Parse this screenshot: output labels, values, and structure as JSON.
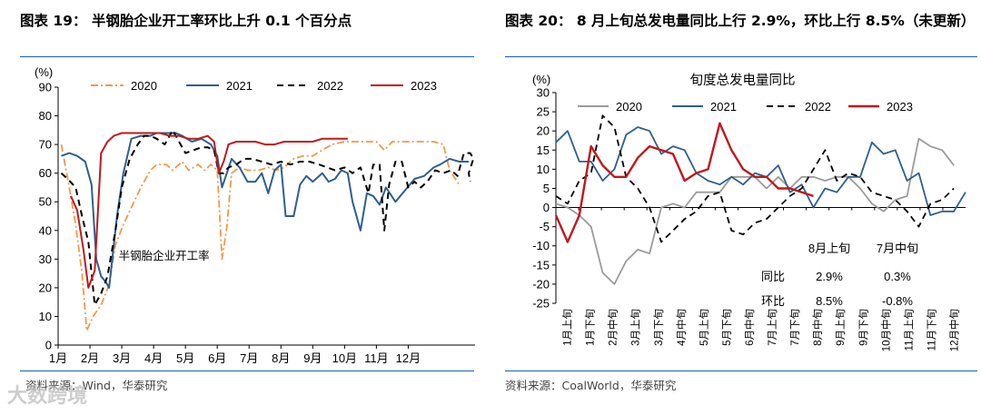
{
  "watermark": "大数跨境",
  "chart_data": [
    {
      "type": "line",
      "title": "图表 19：  半钢胎企业开工率环比上升 0.1 个百分点",
      "ylabel": "(%)",
      "ylim": [
        0,
        90
      ],
      "yticks": [
        0,
        10,
        20,
        30,
        40,
        50,
        60,
        70,
        80,
        90
      ],
      "xticks": [
        "1月",
        "2月",
        "3月",
        "4月",
        "5月",
        "6月",
        "7月",
        "8月",
        "9月",
        "10月",
        "11月",
        "12月"
      ],
      "xlim": [
        0,
        13.1
      ],
      "annotation": "半钢胎企业开工率",
      "source": "资料来源：Wind，华泰研究",
      "legend": [
        "2020",
        "2021",
        "2022",
        "2023"
      ],
      "colors": [
        "#ee9a4d",
        "#2f5f8f",
        "#000000",
        "#c0191c"
      ],
      "series": [
        {
          "name": "2020",
          "style": "dashdot",
          "points": [
            [
              0.1,
              70
            ],
            [
              0.35,
              55
            ],
            [
              0.55,
              42
            ],
            [
              0.75,
              25
            ],
            [
              0.9,
              5
            ],
            [
              1.1,
              10
            ],
            [
              1.35,
              14
            ],
            [
              1.6,
              21
            ],
            [
              1.8,
              35
            ],
            [
              2.05,
              42
            ],
            [
              2.3,
              48
            ],
            [
              2.6,
              55
            ],
            [
              2.9,
              61
            ],
            [
              3.1,
              63
            ],
            [
              3.4,
              63
            ],
            [
              3.6,
              61
            ],
            [
              3.9,
              64
            ],
            [
              4.1,
              61
            ],
            [
              4.4,
              63
            ],
            [
              4.6,
              61
            ],
            [
              4.8,
              63
            ],
            [
              5.0,
              61
            ],
            [
              5.15,
              30
            ],
            [
              5.3,
              41
            ],
            [
              5.45,
              60
            ],
            [
              5.7,
              62
            ],
            [
              5.95,
              61
            ],
            [
              6.3,
              61
            ],
            [
              6.6,
              62
            ],
            [
              6.85,
              61
            ],
            [
              7.1,
              62
            ],
            [
              7.4,
              65
            ],
            [
              7.7,
              66
            ],
            [
              8.0,
              66
            ],
            [
              8.3,
              68
            ],
            [
              8.6,
              70
            ],
            [
              9.0,
              71
            ],
            [
              9.5,
              71
            ],
            [
              10.0,
              71
            ],
            [
              10.25,
              68
            ],
            [
              10.5,
              71
            ],
            [
              11.0,
              71
            ],
            [
              11.5,
              71
            ],
            [
              11.8,
              71
            ],
            [
              12.1,
              70
            ],
            [
              12.3,
              61
            ],
            [
              12.6,
              56
            ]
          ]
        },
        {
          "name": "2021",
          "style": "solid",
          "points": [
            [
              0.1,
              66
            ],
            [
              0.35,
              67
            ],
            [
              0.6,
              66
            ],
            [
              0.85,
              64
            ],
            [
              1.05,
              56
            ],
            [
              1.2,
              30
            ],
            [
              1.35,
              24
            ],
            [
              1.5,
              22
            ],
            [
              1.6,
              20
            ],
            [
              1.85,
              45
            ],
            [
              2.05,
              60
            ],
            [
              2.3,
              72
            ],
            [
              2.6,
              73
            ],
            [
              2.9,
              73
            ],
            [
              3.1,
              74
            ],
            [
              3.3,
              74
            ],
            [
              3.5,
              74
            ],
            [
              3.7,
              74
            ],
            [
              3.9,
              73
            ],
            [
              4.2,
              71
            ],
            [
              4.5,
              72
            ],
            [
              4.8,
              70
            ],
            [
              5.0,
              66
            ],
            [
              5.15,
              55
            ],
            [
              5.3,
              60
            ],
            [
              5.45,
              65
            ],
            [
              5.7,
              62
            ],
            [
              5.95,
              57
            ],
            [
              6.2,
              57
            ],
            [
              6.4,
              60
            ],
            [
              6.6,
              53
            ],
            [
              6.8,
              61
            ],
            [
              7.0,
              63
            ],
            [
              7.15,
              45
            ],
            [
              7.4,
              45
            ],
            [
              7.6,
              56
            ],
            [
              7.8,
              59
            ],
            [
              8.0,
              57
            ],
            [
              8.3,
              60
            ],
            [
              8.5,
              57
            ],
            [
              8.7,
              58
            ],
            [
              8.9,
              61
            ],
            [
              9.1,
              60
            ],
            [
              9.25,
              50
            ],
            [
              9.5,
              40
            ],
            [
              9.7,
              53
            ],
            [
              9.9,
              52
            ],
            [
              10.1,
              49
            ],
            [
              10.3,
              55
            ],
            [
              10.6,
              50
            ],
            [
              10.9,
              54
            ],
            [
              11.2,
              58
            ],
            [
              11.5,
              59
            ],
            [
              11.8,
              62
            ],
            [
              12.0,
              63
            ],
            [
              12.3,
              65
            ],
            [
              12.6,
              64
            ],
            [
              12.9,
              64
            ]
          ]
        },
        {
          "name": "2022",
          "style": "dashed",
          "points": [
            [
              0.1,
              60
            ],
            [
              0.3,
              58
            ],
            [
              0.55,
              55
            ],
            [
              0.75,
              45
            ],
            [
              0.95,
              36
            ],
            [
              1.15,
              14
            ],
            [
              1.35,
              18
            ],
            [
              1.55,
              24
            ],
            [
              1.8,
              40
            ],
            [
              2.0,
              55
            ],
            [
              2.25,
              65
            ],
            [
              2.5,
              70
            ],
            [
              2.7,
              73
            ],
            [
              2.9,
              73
            ],
            [
              3.1,
              72
            ],
            [
              3.35,
              70
            ],
            [
              3.6,
              75
            ],
            [
              3.8,
              71
            ],
            [
              4.0,
              67
            ],
            [
              4.25,
              68
            ],
            [
              4.5,
              69
            ],
            [
              4.7,
              69
            ],
            [
              4.9,
              68
            ],
            [
              5.05,
              60
            ],
            [
              5.2,
              60
            ],
            [
              5.35,
              62
            ],
            [
              5.6,
              63
            ],
            [
              5.85,
              65
            ],
            [
              6.1,
              65
            ],
            [
              6.4,
              64
            ],
            [
              6.7,
              63
            ],
            [
              7.0,
              64
            ],
            [
              7.3,
              63
            ],
            [
              7.6,
              64
            ],
            [
              7.9,
              64
            ],
            [
              8.2,
              63
            ],
            [
              8.45,
              62
            ],
            [
              8.7,
              61
            ],
            [
              9.0,
              62
            ],
            [
              9.25,
              60
            ],
            [
              9.5,
              62
            ],
            [
              9.75,
              53
            ],
            [
              9.9,
              63
            ],
            [
              10.1,
              63
            ],
            [
              10.25,
              40
            ],
            [
              10.4,
              56
            ],
            [
              10.6,
              64
            ],
            [
              10.8,
              64
            ],
            [
              11.0,
              55
            ],
            [
              11.2,
              57
            ],
            [
              11.4,
              55
            ],
            [
              11.6,
              57
            ],
            [
              11.85,
              61
            ],
            [
              12.1,
              60
            ],
            [
              12.35,
              61
            ],
            [
              12.55,
              59
            ],
            [
              12.75,
              67
            ],
            [
              12.95,
              67
            ],
            [
              13.05,
              65
            ],
            [
              12.9,
              60
            ],
            [
              12.95,
              57
            ]
          ]
        },
        {
          "name": "2023",
          "style": "solid",
          "points": [
            [
              0.4,
              52
            ],
            [
              0.6,
              47
            ],
            [
              0.8,
              33
            ],
            [
              0.95,
              20
            ],
            [
              1.15,
              26
            ],
            [
              1.35,
              67
            ],
            [
              1.55,
              71
            ],
            [
              1.75,
              73
            ],
            [
              2.0,
              74
            ],
            [
              2.3,
              74
            ],
            [
              2.6,
              74
            ],
            [
              2.9,
              74
            ],
            [
              3.2,
              74
            ],
            [
              3.5,
              73
            ],
            [
              3.8,
              73
            ],
            [
              4.1,
              72
            ],
            [
              4.4,
              72
            ],
            [
              4.7,
              73
            ],
            [
              4.9,
              71
            ],
            [
              5.05,
              60
            ],
            [
              5.2,
              64
            ],
            [
              5.35,
              70
            ],
            [
              5.6,
              71
            ],
            [
              5.9,
              71
            ],
            [
              6.2,
              71
            ],
            [
              6.5,
              70
            ],
            [
              6.8,
              70
            ],
            [
              7.1,
              71
            ],
            [
              7.4,
              71
            ],
            [
              7.7,
              71
            ],
            [
              8.0,
              71
            ],
            [
              8.3,
              72
            ],
            [
              8.6,
              72
            ],
            [
              8.9,
              72
            ],
            [
              9.1,
              72
            ]
          ]
        }
      ]
    },
    {
      "type": "line",
      "title": "图表 20：  8 月上旬总发电量同比上行 2.9%，环比上行 8.5%（未更新）",
      "chart_title": "旬度总发电量同比",
      "ylabel": "(%)",
      "ylim": [
        -25,
        30
      ],
      "yticks": [
        -25,
        -20,
        -15,
        -10,
        -5,
        0,
        5,
        10,
        15,
        20,
        25,
        30
      ],
      "xticks": [
        "1月上旬",
        "1月下旬",
        "2月中旬",
        "3月上旬",
        "3月下旬",
        "4月中旬",
        "5月上旬",
        "5月下旬",
        "6月中旬",
        "7月上旬",
        "7月下旬",
        "8月中旬",
        "9月上旬",
        "9月下旬",
        "10月中旬",
        "11月上旬",
        "11月下旬",
        "12月中旬"
      ],
      "xlim": [
        0,
        35
      ],
      "source": "资料来源：CoalWorld，华泰研究",
      "legend": [
        "2020",
        "2021",
        "2022",
        "2023"
      ],
      "colors": [
        "#9b9b9b",
        "#2f5f8f",
        "#000000",
        "#c0191c"
      ],
      "table": {
        "headers": [
          "",
          "8月上旬",
          "7月中旬"
        ],
        "rows": [
          [
            "同比",
            "2.9%",
            "0.3%"
          ],
          [
            "环比",
            "8.5%",
            "-0.8%"
          ]
        ]
      },
      "series": [
        {
          "name": "2020",
          "style": "solid",
          "values": [
            1,
            0,
            -2,
            -5,
            -17,
            -20,
            -14,
            -11,
            -12,
            0,
            1,
            0,
            4,
            4,
            4,
            8,
            8,
            8,
            5,
            8,
            5,
            8,
            8,
            7,
            8,
            8,
            5,
            1,
            -1,
            2,
            3,
            18,
            16,
            15,
            11
          ]
        },
        {
          "name": "2021",
          "style": "solid",
          "values": [
            17,
            20,
            12,
            12,
            7,
            10,
            19,
            21,
            20,
            14,
            16,
            15,
            9,
            7,
            6,
            8,
            6,
            9,
            8,
            11,
            4,
            6,
            0,
            5,
            4,
            8,
            8,
            17,
            14,
            15,
            7,
            9,
            -2,
            -1,
            -1,
            4
          ]
        },
        {
          "name": "2022",
          "style": "dashed",
          "values": [
            3,
            1,
            7,
            9,
            24,
            21,
            8,
            5,
            0,
            -9,
            -6,
            -3,
            -1,
            3,
            4,
            -6,
            -7,
            -4,
            -3,
            0,
            3,
            5,
            10,
            15,
            7,
            9,
            8,
            4,
            3,
            2,
            -1,
            -5,
            1,
            2,
            5
          ]
        },
        {
          "name": "2023",
          "style": "solid",
          "values": [
            -2,
            -9,
            -2,
            16,
            11,
            8,
            8,
            13,
            16,
            15,
            14,
            7,
            9,
            10,
            22,
            15,
            10,
            8,
            8,
            5,
            5,
            4,
            3
          ]
        }
      ]
    }
  ]
}
